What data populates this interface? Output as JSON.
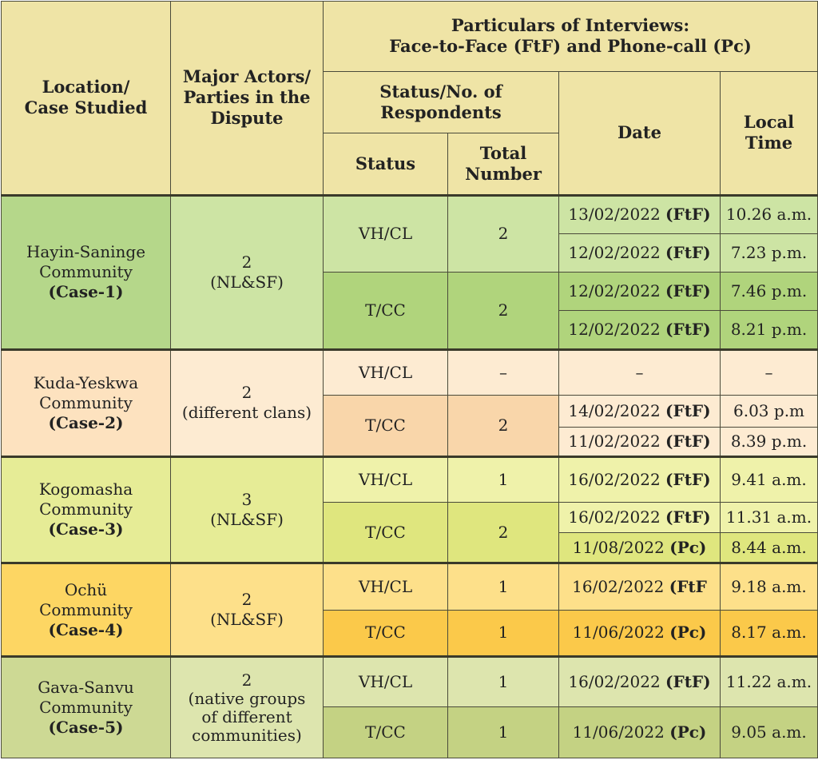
{
  "headers": {
    "location": [
      "Location/",
      "Case Studied"
    ],
    "actors": [
      "Major Actors/",
      "Parties in the",
      "Dispute"
    ],
    "particulars": [
      "Particulars of Interviews:",
      "Face-to-Face (FtF) and Phone-call (Pc)"
    ],
    "status_no": [
      "Status/No. of",
      "Respondents"
    ],
    "status": "Status",
    "total": [
      "Total",
      "Number"
    ],
    "date": "Date",
    "local_time": [
      "Local",
      "Time"
    ]
  },
  "cases": [
    {
      "location": [
        "Hayin-Saninge",
        "Community",
        "(Case-1)"
      ],
      "actors": [
        "2",
        "(NL&SF)"
      ],
      "groups": [
        {
          "status": "VH/CL",
          "total": "2",
          "rows": [
            {
              "date": "13/02/2022",
              "mode": "(FtF)",
              "time": "10.26 a.m."
            },
            {
              "date": "12/02/2022",
              "mode": "(FtF)",
              "time": "7.23 p.m."
            }
          ]
        },
        {
          "status": "T/CC",
          "total": "2",
          "rows": [
            {
              "date": "12/02/2022",
              "mode": "(FtF)",
              "time": "7.46 p.m."
            },
            {
              "date": "12/02/2022",
              "mode": "(FtF)",
              "time": "8.21 p.m."
            }
          ]
        }
      ]
    },
    {
      "location": [
        "Kuda-Yeskwa",
        "Community",
        "(Case-2)"
      ],
      "actors": [
        "2",
        "(different clans)"
      ],
      "groups": [
        {
          "status": "VH/CL",
          "total": "–",
          "rows": [
            {
              "date": "–",
              "mode": "",
              "time": "–"
            }
          ]
        },
        {
          "status": "T/CC",
          "total": "2",
          "rows": [
            {
              "date": "14/02/2022",
              "mode": "(FtF)",
              "time": "6.03 p.m"
            },
            {
              "date": "11/02/2022",
              "mode": "(FtF)",
              "time": "8.39 p.m."
            }
          ]
        }
      ]
    },
    {
      "location": [
        "Kogomasha",
        "Community",
        "(Case-3)"
      ],
      "actors": [
        "3",
        "(NL&SF)"
      ],
      "groups": [
        {
          "status": "VH/CL",
          "total": "1",
          "rows": [
            {
              "date": "16/02/2022",
              "mode": "(FtF)",
              "time": "9.41 a.m."
            }
          ]
        },
        {
          "status": "T/CC",
          "total": "2",
          "rows": [
            {
              "date": "16/02/2022",
              "mode": "(FtF)",
              "time": "11.31 a.m."
            },
            {
              "date": "11/08/2022",
              "mode": "(Pc)",
              "time": "8.44 a.m."
            }
          ]
        }
      ]
    },
    {
      "location": [
        "Ochü",
        "Community",
        "(Case-4)"
      ],
      "actors": [
        "2",
        "(NL&SF)"
      ],
      "groups": [
        {
          "status": "VH/CL",
          "total": "1",
          "rows": [
            {
              "date": "16/02/2022",
              "mode": "(FtF",
              "time": "9.18 a.m."
            }
          ]
        },
        {
          "status": "T/CC",
          "total": "1",
          "rows": [
            {
              "date": "11/06/2022",
              "mode": "(Pc)",
              "time": "8.17 a.m."
            }
          ]
        }
      ]
    },
    {
      "location": [
        "Gava-Sanvu",
        "Community",
        "(Case-5)"
      ],
      "actors": [
        "2",
        "(native groups",
        "of different",
        "communities)"
      ],
      "groups": [
        {
          "status": "VH/CL",
          "total": "1",
          "rows": [
            {
              "date": "16/02/2022",
              "mode": "(FtF)",
              "time": "11.22 a.m."
            }
          ]
        },
        {
          "status": "T/CC",
          "total": "1",
          "rows": [
            {
              "date": "11/06/2022",
              "mode": "(Pc)",
              "time": "9.05 a.m."
            }
          ]
        }
      ]
    }
  ]
}
